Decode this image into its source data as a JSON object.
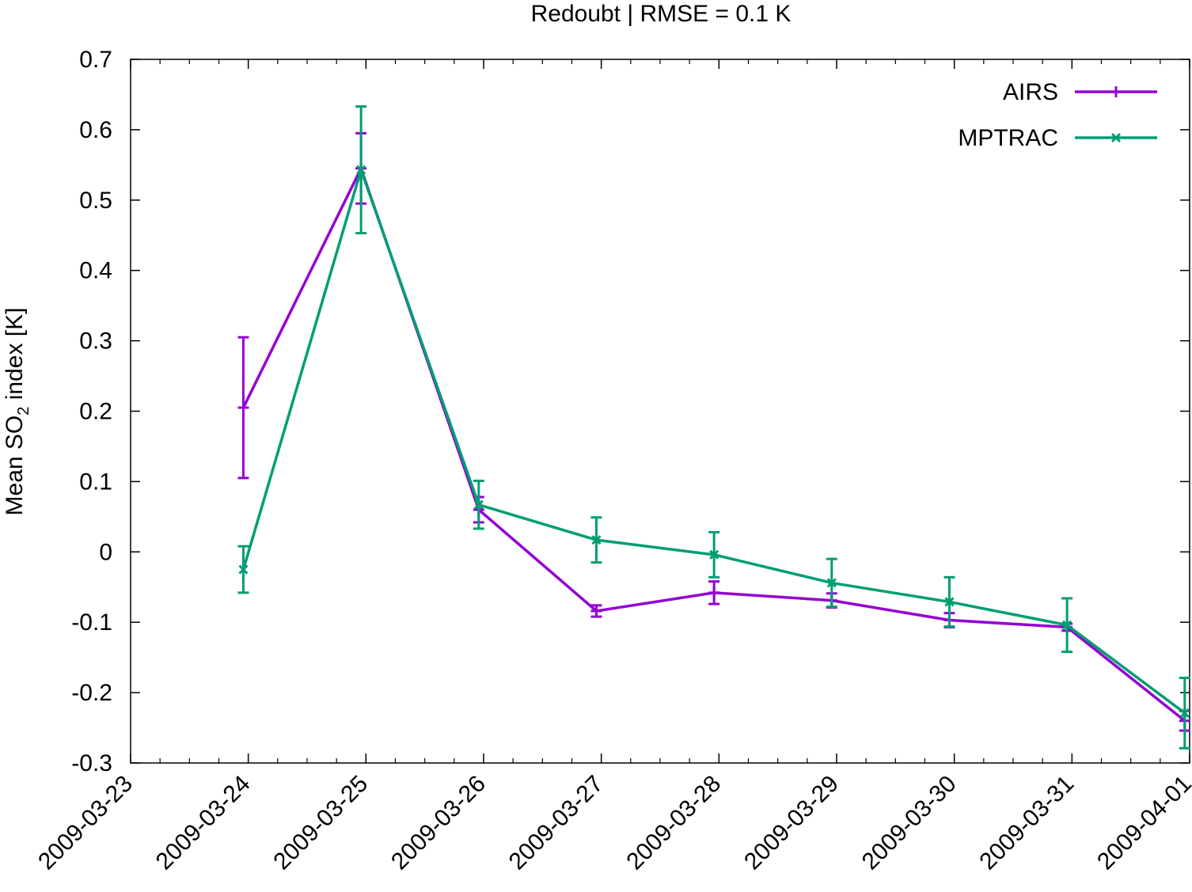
{
  "chart_data": {
    "type": "line",
    "title": "Redoubt | RMSE = 0.1 K",
    "ylabel": {
      "prefix": "Mean SO",
      "subscript": "2",
      "suffix": " index [K]"
    },
    "xlabel": "",
    "x_ticks": [
      "2009-03-23",
      "2009-03-24",
      "2009-03-25",
      "2009-03-26",
      "2009-03-27",
      "2009-03-28",
      "2009-03-29",
      "2009-03-30",
      "2009-03-31",
      "2009-04-01"
    ],
    "y_ticks": [
      "0.7",
      "0.6",
      "0.5",
      "0.4",
      "0.3",
      "0.2",
      "0.1",
      "0",
      "-0.1",
      "-0.2",
      "-0.3"
    ],
    "ylim": [
      -0.3,
      0.7
    ],
    "xlim": [
      "2009-03-23",
      "2009-04-01"
    ],
    "grid": false,
    "legend_position": "top-right",
    "series": [
      {
        "name": "AIRS",
        "color": "#9400d3",
        "marker": "plus",
        "x": [
          "2009-03-23 23:00",
          "2009-03-24 23:00",
          "2009-03-25 23:00",
          "2009-03-26 23:00",
          "2009-03-27 23:00",
          "2009-03-28 23:00",
          "2009-03-29 23:00",
          "2009-03-30 23:00",
          "2009-03-31 23:00"
        ],
        "values": [
          0.205,
          0.545,
          0.06,
          -0.084,
          -0.058,
          -0.069,
          -0.097,
          -0.107,
          -0.24
        ],
        "errors": [
          0.1,
          0.05,
          0.018,
          0.008,
          0.016,
          0.01,
          0.01,
          0.005,
          0.014
        ]
      },
      {
        "name": "MPTRAC",
        "color": "#009e73",
        "marker": "cross",
        "x": [
          "2009-03-23 23:00",
          "2009-03-24 23:00",
          "2009-03-25 23:00",
          "2009-03-26 23:00",
          "2009-03-27 23:00",
          "2009-03-28 23:00",
          "2009-03-29 23:00",
          "2009-03-30 23:00",
          "2009-03-31 23:00"
        ],
        "values": [
          -0.025,
          0.543,
          0.067,
          0.017,
          -0.004,
          -0.044,
          -0.071,
          -0.104,
          -0.229
        ],
        "errors": [
          0.033,
          0.09,
          0.034,
          0.032,
          0.032,
          0.034,
          0.035,
          0.038,
          0.05
        ]
      }
    ]
  }
}
